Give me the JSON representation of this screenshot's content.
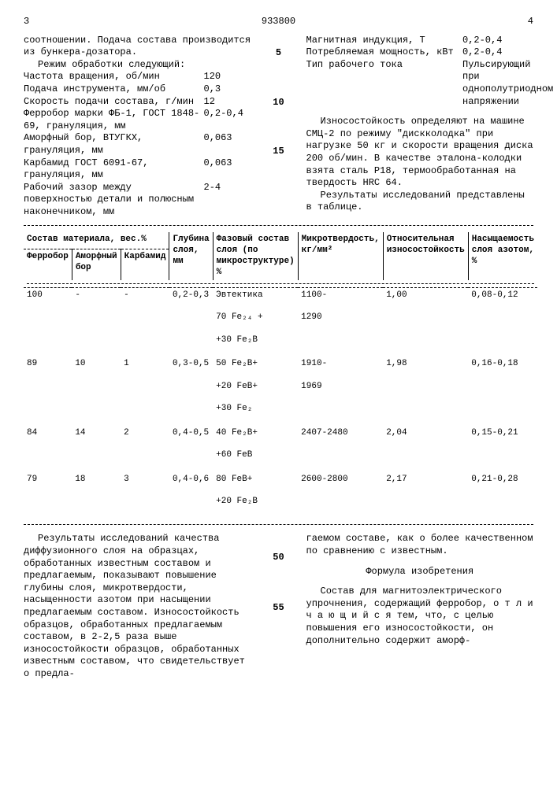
{
  "header": {
    "page_left": "3",
    "patent": "933800",
    "page_right": "4"
  },
  "left_intro": "соотношении. Подача состава производится из бункера-дозатора.",
  "left_mode_title": "Режим обработки следующий:",
  "left_params": [
    {
      "label": "Частота вращения, об/мин",
      "val": "120",
      "ln": ""
    },
    {
      "label": "Подача инструмента, мм/об",
      "val": "0,3",
      "ln": "5"
    },
    {
      "label": "Скорость подачи состава, г/мин",
      "val": "12",
      "ln": ""
    },
    {
      "label": "Ферробор марки ФБ-1, ГОСТ 1848-69, грануляция, мм",
      "val": "0,2-0,4",
      "ln": ""
    },
    {
      "label": "Аморфный бор, ВТУГКХ, грануляция, мм",
      "val": "0,063",
      "ln": "10"
    },
    {
      "label": "Карбамид ГОСТ 6091-67, грануляция, мм",
      "val": "0,063",
      "ln": ""
    },
    {
      "label": "Рабочий зазор между поверхностью детали и полюсным наконечником, мм",
      "val": "2-4",
      "ln": "15"
    }
  ],
  "right_params": [
    {
      "label": "Магнитная индукция, Т",
      "val": "0,2-0,4"
    },
    {
      "label": "Потребляемая мощность, кВт",
      "val": "0,2-0,4"
    },
    {
      "label": "Тип рабочего тока",
      "val": "Пульсирующий при однополутриодном напряжении"
    }
  ],
  "right_para1": "Износостойкость определяют на машине СМЦ-2 по режиму \"дискколодка\" при нагрузке 50 кг и скорости вращения диска 200 об/мин. В качестве эталона-колодки взята сталь Р18, термообработанная на твердость HRC 64.",
  "right_para2": "Результаты исследований представлены в таблице.",
  "table": {
    "group1": "Состав материала, вес.%",
    "cols": [
      "Ферробор",
      "Аморфный бор",
      "Карбамид",
      "Глубина слоя, мм",
      "Фазовый состав слоя (по микроструктуре) %",
      "Микротвердость, кг/мм²",
      "Относительная износостойкость",
      "Насыщаемость слоя азотом, %"
    ],
    "rows": [
      {
        "f": "100",
        "a": "-",
        "k": "-",
        "g": "0,2-0,3",
        "ph": [
          "Эвтектика",
          "70 Fe₂₄ +",
          "+30 Fe₂B"
        ],
        "m": "1100-\n1290",
        "o": "1,00",
        "n": "0,08-0,12"
      },
      {
        "f": "89",
        "a": "10",
        "k": "1",
        "g": "0,3-0,5",
        "ph": [
          "50 Fe₂B+",
          "+20 FeB+",
          "+30 Fe₂"
        ],
        "m": "1910-\n1969",
        "o": "1,98",
        "n": "0,16-0,18"
      },
      {
        "f": "84",
        "a": "14",
        "k": "2",
        "g": "0,4-0,5",
        "ph": [
          "40 Fe₂B+",
          "+60 FeB"
        ],
        "m": "2407-2480",
        "o": "2,04",
        "n": "0,15-0,21"
      },
      {
        "f": "79",
        "a": "18",
        "k": "3",
        "g": "0,4-0,6",
        "ph": [
          "80 FeB+",
          "+20 Fe₂B"
        ],
        "m": "2600-2800",
        "o": "2,17",
        "n": "0,21-0,28"
      }
    ]
  },
  "bottom": {
    "left_ln50": "50",
    "left_ln55": "55",
    "left_p": "Результаты исследований качества диффузионного слоя на образцах, обработанных известным составом и предлагаемым, показывают повышение глубины слоя, микротвердости, насыщенности азотом при насыщении предлагаемым составом. Износостойкость образцов, обработанных предлагаемым составом, в 2-2,5 раза выше износостойкости образцов, обработанных известным составом, что свидетельствует о предла-",
    "right_p1": "гаемом составе, как о более качественном по сравнению с известным.",
    "formula_title": "Формула изобретения",
    "right_p2": "Состав для магнитоэлектрического упрочнения, содержащий ферробор, о т л и ч а ю щ и й с я  тем, что, с целью повышения его износостойкости, он дополнительно содержит аморф-"
  }
}
